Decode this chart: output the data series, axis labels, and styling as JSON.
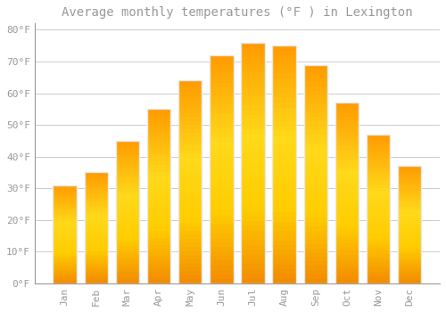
{
  "title": "Average monthly temperatures (°F ) in Lexington",
  "months": [
    "Jan",
    "Feb",
    "Mar",
    "Apr",
    "May",
    "Jun",
    "Jul",
    "Aug",
    "Sep",
    "Oct",
    "Nov",
    "Dec"
  ],
  "values": [
    31,
    35,
    45,
    55,
    64,
    72,
    76,
    75,
    69,
    57,
    47,
    37
  ],
  "bar_color_main": "#FFA500",
  "bar_color_light": "#FFD966",
  "bar_edge_color": "#E8E8E8",
  "plot_bg_color": "#FFFFFF",
  "figure_bg_color": "#FFFFFF",
  "grid_color": "#CCCCCC",
  "ylim": [
    0,
    82
  ],
  "yticks": [
    0,
    10,
    20,
    30,
    40,
    50,
    60,
    70,
    80
  ],
  "ytick_labels": [
    "0°F",
    "10°F",
    "20°F",
    "30°F",
    "40°F",
    "50°F",
    "60°F",
    "70°F",
    "80°F"
  ],
  "title_fontsize": 10,
  "tick_fontsize": 8,
  "font_color": "#999999",
  "bar_width": 0.75
}
